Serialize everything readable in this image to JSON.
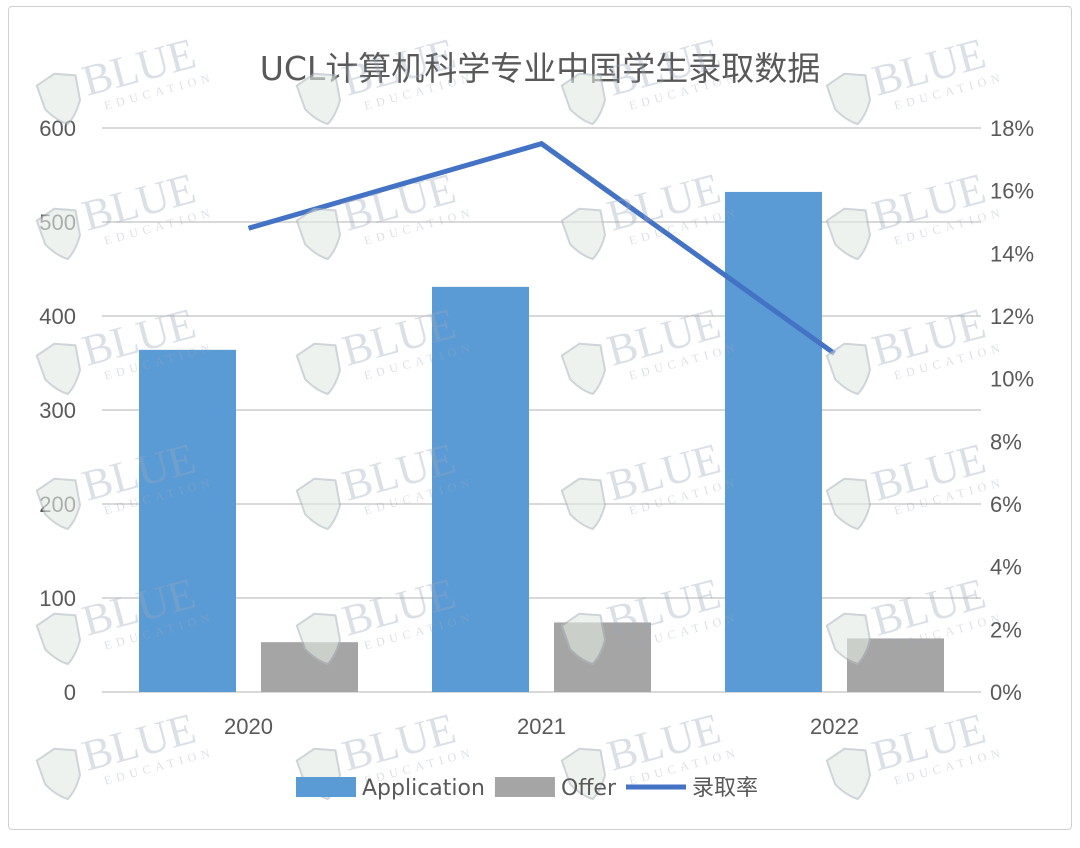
{
  "chart_data": {
    "type": "bar+line",
    "title": "UCL计算机科学专业中国学生录取数据",
    "categories": [
      "2020",
      "2021",
      "2022"
    ],
    "series": [
      {
        "name": "Application",
        "type": "bar",
        "axis": "left",
        "values": [
          364,
          431,
          532
        ],
        "color": "#5b9bd5"
      },
      {
        "name": "Offer",
        "type": "bar",
        "axis": "left",
        "values": [
          53,
          74,
          57
        ],
        "color": "#a5a5a5"
      },
      {
        "name": "录取率",
        "type": "line",
        "axis": "right",
        "values": [
          14.8,
          17.5,
          10.8
        ],
        "color": "#4472c4"
      }
    ],
    "y_left": {
      "range": [
        0,
        600
      ],
      "ticks": [
        "0",
        "100",
        "200",
        "300",
        "400",
        "500",
        "600"
      ]
    },
    "y_right": {
      "range": [
        0,
        18
      ],
      "ticks": [
        "0%",
        "2%",
        "4%",
        "6%",
        "8%",
        "10%",
        "12%",
        "14%",
        "16%",
        "18%"
      ]
    },
    "grid": true,
    "legend_position": "bottom"
  },
  "watermark": "BLUE EDUCATION"
}
